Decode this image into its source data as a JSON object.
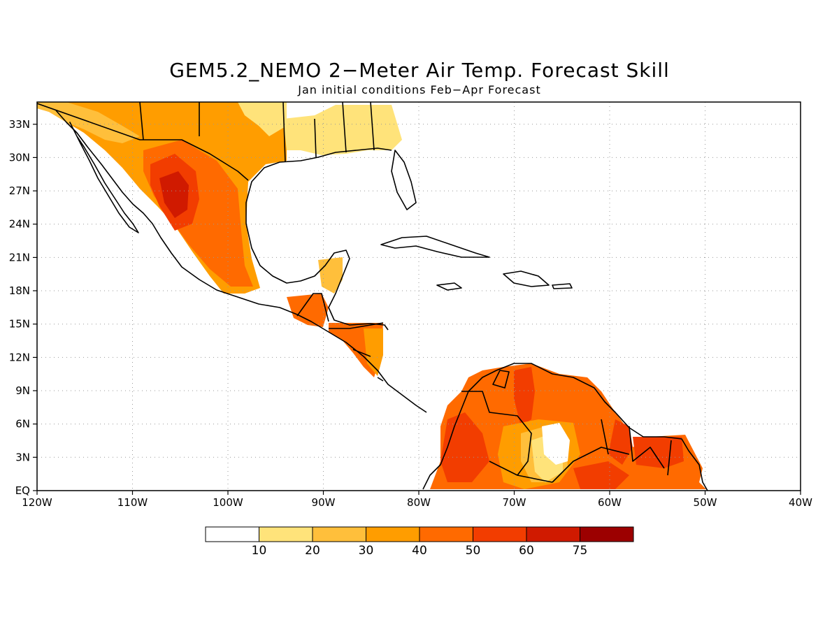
{
  "title": "GEM5.2_NEMO 2−Meter Air Temp. Forecast Skill",
  "subtitle": "Jan initial conditions  Feb−Apr Forecast",
  "map": {
    "lon_range": [
      -120,
      -40
    ],
    "lat_range": [
      0,
      35
    ],
    "grid": true
  },
  "axes": {
    "lon_ticks": [
      "120W",
      "110W",
      "100W",
      "90W",
      "80W",
      "70W",
      "60W",
      "50W",
      "40W"
    ],
    "lat_ticks": [
      "EQ",
      "3N",
      "6N",
      "9N",
      "12N",
      "15N",
      "18N",
      "21N",
      "24N",
      "27N",
      "30N",
      "33N"
    ]
  },
  "colorbar": {
    "colors": [
      "#ffffff",
      "#ffe37a",
      "#ffbf3b",
      "#ff9d00",
      "#ff6a00",
      "#f23d00",
      "#d01a00",
      "#9c0000"
    ],
    "labels": [
      "10",
      "20",
      "30",
      "40",
      "50",
      "60",
      "75"
    ]
  },
  "colors": {
    "level_10_20": "#ffe37a",
    "level_20_30": "#ffbf3b",
    "level_30_40": "#ff9d00",
    "level_40_50": "#ff6a00",
    "level_50_60": "#f23d00",
    "level_60_75": "#d01a00",
    "level_75_plus": "#9c0000"
  }
}
